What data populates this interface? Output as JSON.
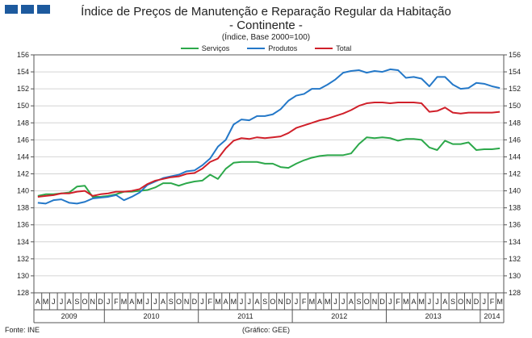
{
  "header": {
    "title": "Índice de Preços de Manutenção e Reparação Regular da Habitação",
    "subtitle": "- Continente -",
    "note": "(Índice, Base 2000=100)"
  },
  "footer": {
    "source": "Fonte: INE",
    "credit": "(Gráfico: GEE)"
  },
  "colors": {
    "brand": "#1d5a9e",
    "servicos": "#2ca84a",
    "produtos": "#2478c8",
    "total": "#d0202a"
  },
  "chart_data": {
    "type": "line",
    "title": "Índice de Preços de Manutenção e Reparação Regular da Habitação",
    "ylim": [
      128,
      156
    ],
    "yticks": [
      128,
      130,
      132,
      134,
      136,
      138,
      140,
      142,
      144,
      146,
      148,
      150,
      152,
      154,
      156
    ],
    "grid": true,
    "legend_position": "top",
    "months": [
      "A",
      "M",
      "J",
      "J",
      "A",
      "S",
      "O",
      "N",
      "D",
      "J",
      "F",
      "M",
      "A",
      "M",
      "J",
      "J",
      "A",
      "S",
      "O",
      "N",
      "D",
      "J",
      "F",
      "M",
      "A",
      "M",
      "J",
      "J",
      "A",
      "S",
      "O",
      "N",
      "D",
      "J",
      "F",
      "M",
      "A",
      "M",
      "J",
      "J",
      "A",
      "S",
      "O",
      "N",
      "D",
      "J",
      "F",
      "M",
      "A",
      "M",
      "J",
      "J",
      "A",
      "S",
      "O",
      "N",
      "D",
      "J",
      "F",
      "M"
    ],
    "years": [
      {
        "label": "2009",
        "start": 0,
        "end": 9
      },
      {
        "label": "2010",
        "start": 9,
        "end": 21
      },
      {
        "label": "2011",
        "start": 21,
        "end": 33
      },
      {
        "label": "2012",
        "start": 33,
        "end": 45
      },
      {
        "label": "2013",
        "start": 45,
        "end": 57
      },
      {
        "label": "2014",
        "start": 57,
        "end": 60
      }
    ],
    "series": [
      {
        "name": "Serviços",
        "color": "#2ca84a",
        "values": [
          139.4,
          139.6,
          139.6,
          139.7,
          139.8,
          140.5,
          140.6,
          139.3,
          139.3,
          139.4,
          139.6,
          139.9,
          139.9,
          140.0,
          140.1,
          140.4,
          140.9,
          140.9,
          140.6,
          140.9,
          141.1,
          141.2,
          141.9,
          141.4,
          142.6,
          143.3,
          143.4,
          143.4,
          143.4,
          143.2,
          143.2,
          142.8,
          142.7,
          143.2,
          143.6,
          143.9,
          144.1,
          144.2,
          144.2,
          144.2,
          144.4,
          145.5,
          146.3,
          146.2,
          146.3,
          146.2,
          145.9,
          146.1,
          146.1,
          146.0,
          145.1,
          144.8,
          145.9,
          145.5,
          145.5,
          145.7,
          144.8,
          144.9,
          144.9,
          145.0
        ]
      },
      {
        "name": "Produtos",
        "color": "#2478c8",
        "values": [
          138.6,
          138.5,
          138.9,
          139.0,
          138.6,
          138.5,
          138.7,
          139.1,
          139.2,
          139.3,
          139.5,
          138.9,
          139.3,
          139.8,
          140.7,
          141.1,
          141.5,
          141.7,
          141.9,
          142.3,
          142.4,
          143.0,
          143.8,
          145.2,
          146.0,
          147.8,
          148.4,
          148.3,
          148.8,
          148.8,
          149.0,
          149.6,
          150.6,
          151.2,
          151.4,
          152.0,
          152.0,
          152.5,
          153.1,
          153.9,
          154.1,
          154.2,
          153.9,
          154.1,
          154.0,
          154.3,
          154.2,
          153.3,
          153.4,
          153.2,
          152.3,
          153.4,
          153.4,
          152.5,
          152.0,
          152.1,
          152.7,
          152.6,
          152.3,
          152.1
        ]
      },
      {
        "name": "Total",
        "color": "#d0202a",
        "values": [
          139.3,
          139.4,
          139.5,
          139.7,
          139.7,
          139.9,
          140.0,
          139.4,
          139.6,
          139.7,
          139.9,
          139.9,
          140.0,
          140.2,
          140.8,
          141.2,
          141.4,
          141.6,
          141.7,
          142.0,
          142.1,
          142.6,
          143.4,
          143.8,
          145.0,
          145.9,
          146.2,
          146.1,
          146.3,
          146.2,
          146.3,
          146.4,
          146.8,
          147.4,
          147.7,
          148.0,
          148.3,
          148.5,
          148.8,
          149.1,
          149.5,
          150.0,
          150.3,
          150.4,
          150.4,
          150.3,
          150.4,
          150.4,
          150.4,
          150.3,
          149.3,
          149.4,
          149.8,
          149.2,
          149.1,
          149.2,
          149.2,
          149.2,
          149.2,
          149.3
        ]
      }
    ]
  }
}
